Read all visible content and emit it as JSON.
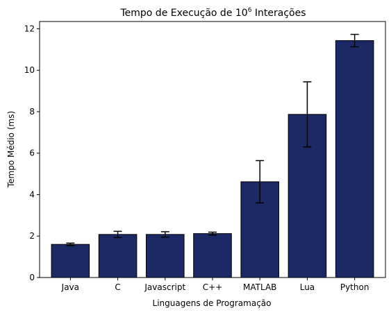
{
  "chart_data": {
    "type": "bar",
    "title": "Tempo de Execução de 10",
    "title_superscript": "6",
    "title_suffix": " Interações",
    "xlabel": "Linguagens de Programação",
    "ylabel": "Tempo Médio (ms)",
    "categories": [
      "Java",
      "C",
      "Javascript",
      "C++",
      "MATLAB",
      "Lua",
      "Python"
    ],
    "values": [
      1.6,
      2.08,
      2.08,
      2.12,
      4.62,
      7.87,
      11.43
    ],
    "errors": [
      0.06,
      0.15,
      0.13,
      0.07,
      1.02,
      1.57,
      0.3
    ],
    "yticks": [
      0,
      2,
      4,
      6,
      8,
      10,
      12
    ],
    "ylim": [
      0,
      12.35
    ],
    "grid": false,
    "colors": {
      "bar_fill": "#1b2a64",
      "bar_edge": "#000000",
      "error_bar": "#000000",
      "axis": "#000000"
    }
  }
}
